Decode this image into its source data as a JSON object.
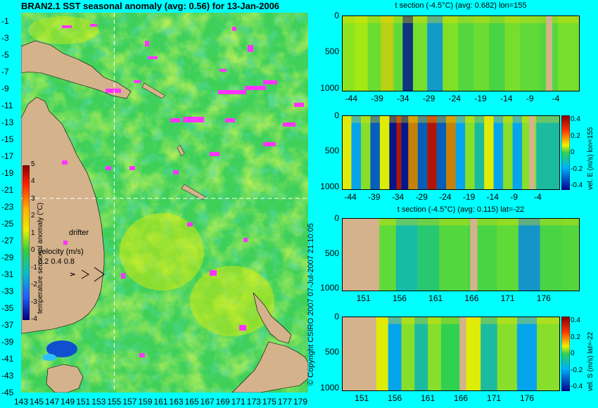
{
  "title": "BRAN2.1 SST seasonal anomaly (avg: 0.56) for 13-Jan-2006",
  "copyright": "© Copyright CSIRO 2007  07-Jul-2007 21:10:05",
  "colors": {
    "background": "#00ffff",
    "land": "#d4b28c",
    "drifter": "#ff33ff",
    "crosshair": "#ffffff"
  },
  "map": {
    "lat_labels": [
      "-1",
      "-3",
      "-5",
      "-7",
      "-9",
      "-11",
      "-13",
      "-15",
      "-17",
      "-19",
      "-21",
      "-23",
      "-25",
      "-27",
      "-29",
      "-31",
      "-33",
      "-35",
      "-37",
      "-39",
      "-41",
      "-43",
      "-45"
    ],
    "lon_labels": [
      "143",
      "145",
      "147",
      "149",
      "151",
      "153",
      "155",
      "157",
      "159",
      "161",
      "163",
      "165",
      "167",
      "169",
      "171",
      "173",
      "175",
      "177",
      "179"
    ],
    "crosshair": {
      "lon": 155,
      "lat": -22
    },
    "colorbar": {
      "label": "temperature seasonal anomaly (°C)",
      "ticks": [
        "5",
        "4",
        "3",
        "2",
        "1",
        "0",
        "-1",
        "-2",
        "-3",
        "-4"
      ],
      "range": [
        -4,
        5
      ]
    },
    "legend": {
      "drifter": "drifter",
      "velocity_title": "velocity (m/s)",
      "velocity_values": "0.2 0.4 0.8"
    }
  },
  "panels": [
    {
      "id": "p1",
      "title": "t section (-4.5°C) (avg: 0.682) lon=155",
      "xticks": [
        "-44",
        "-39",
        "-34",
        "-29",
        "-24",
        "-19",
        "-14",
        "-9",
        "-4"
      ],
      "yticks": [
        "0",
        "500",
        "1000"
      ],
      "colorbar": false
    },
    {
      "id": "p2",
      "title": "",
      "xticks": [
        "-44",
        "-39",
        "-34",
        "-29",
        "-24",
        "-19",
        "-14",
        "-9",
        "-4"
      ],
      "yticks": [
        "0",
        "500",
        "1000"
      ],
      "colorbar": true,
      "cb_ticks": [
        "0.4",
        "0.2",
        "0",
        "-0.2",
        "-0.4"
      ],
      "cb_label": "vel. E (m/s) lon=155"
    },
    {
      "id": "p3",
      "title": "t section (-4.5°C) (avg: 0.115) lat=-22",
      "xticks": [
        "151",
        "156",
        "161",
        "166",
        "171",
        "176"
      ],
      "yticks": [
        "0",
        "500",
        "1000"
      ],
      "colorbar": false
    },
    {
      "id": "p4",
      "title": "",
      "xticks": [
        "151",
        "156",
        "161",
        "166",
        "171",
        "176"
      ],
      "yticks": [
        "0",
        "500",
        "1000"
      ],
      "colorbar": true,
      "cb_ticks": [
        "0.4",
        "0.2",
        "0",
        "-0.2",
        "-0.4"
      ],
      "cb_label": "vel. S (m/s) lat=-22"
    }
  ],
  "chart_data": [
    {
      "type": "heatmap",
      "title": "BRAN2.1 SST seasonal anomaly (avg: 0.56) for 13-Jan-2006",
      "xlabel": "",
      "ylabel": "",
      "xlim": [
        143,
        180
      ],
      "ylim": [
        -45,
        0
      ],
      "colorbar_range": [
        -4,
        5
      ],
      "mean": 0.56
    },
    {
      "type": "heatmap",
      "title": "t section (-4.5°C) (avg: 0.682) lon=155",
      "xlim": [
        -46,
        0
      ],
      "ylim": [
        1050,
        0
      ],
      "mean": 0.682,
      "columns": [
        {
          "x": -45,
          "v": 0.8
        },
        {
          "x": -42,
          "v": 1.0
        },
        {
          "x": -40,
          "v": 0.5
        },
        {
          "x": -37,
          "v": 1.5
        },
        {
          "x": -35,
          "v": 0.4
        },
        {
          "x": -33.5,
          "v": -4.0
        },
        {
          "x": -31,
          "v": 0.6
        },
        {
          "x": -28,
          "v": -1.5
        },
        {
          "x": -25,
          "v": 0.7
        },
        {
          "x": -22,
          "v": 0.3
        },
        {
          "x": -19,
          "v": 0.5
        },
        {
          "x": -16,
          "v": 0.2
        },
        {
          "x": -13,
          "v": 0.6
        },
        {
          "x": -10,
          "v": 0.4
        },
        {
          "x": -5.5,
          "v": 0.3
        },
        {
          "x": -3,
          "v": 0.6
        }
      ]
    },
    {
      "type": "heatmap",
      "title": "",
      "xlim": [
        -46,
        0
      ],
      "ylim": [
        1050,
        0
      ],
      "colorbar_label": "vel. E (m/s) lon=155",
      "colorbar_range": [
        -0.4,
        0.4
      ],
      "columns": [
        {
          "x": -45,
          "v": 0.2
        },
        {
          "x": -43,
          "v": -0.2
        },
        {
          "x": -41,
          "v": 0.1
        },
        {
          "x": -39,
          "v": -0.3
        },
        {
          "x": -37,
          "v": 0.2
        },
        {
          "x": -35,
          "v": -0.4
        },
        {
          "x": -34,
          "v": 0.4
        },
        {
          "x": -33,
          "v": -0.4
        },
        {
          "x": -31,
          "v": 0.3
        },
        {
          "x": -29,
          "v": -0.3
        },
        {
          "x": -27,
          "v": 0.4
        },
        {
          "x": -25,
          "v": -0.3
        },
        {
          "x": -23,
          "v": 0.3
        },
        {
          "x": -21,
          "v": -0.2
        },
        {
          "x": -19,
          "v": 0.1
        },
        {
          "x": -17,
          "v": -0.1
        },
        {
          "x": -15,
          "v": 0.2
        },
        {
          "x": -13,
          "v": -0.2
        },
        {
          "x": -11,
          "v": 0.1
        },
        {
          "x": -9,
          "v": -0.2
        },
        {
          "x": -7,
          "v": 0.1
        },
        {
          "x": -3,
          "v": -0.1
        }
      ]
    },
    {
      "type": "heatmap",
      "title": "t section (-4.5°C) (avg: 0.115) lat=-22",
      "xlim": [
        148,
        181
      ],
      "ylim": [
        1050,
        0
      ],
      "mean": 0.115,
      "columns": [
        {
          "x": 154,
          "v": 0.4
        },
        {
          "x": 157,
          "v": -0.8
        },
        {
          "x": 160,
          "v": -0.3
        },
        {
          "x": 163,
          "v": 0.3
        },
        {
          "x": 168,
          "v": 0.2
        },
        {
          "x": 171,
          "v": 0.4
        },
        {
          "x": 174,
          "v": -1.6
        },
        {
          "x": 177,
          "v": 0.2
        },
        {
          "x": 180,
          "v": 0.3
        }
      ]
    },
    {
      "type": "heatmap",
      "title": "",
      "xlim": [
        148,
        181
      ],
      "ylim": [
        1050,
        0
      ],
      "colorbar_label": "vel. S (m/s) lat=-22",
      "colorbar_range": [
        -0.4,
        0.4
      ],
      "columns": [
        {
          "x": 154,
          "v": 0.2
        },
        {
          "x": 156,
          "v": -0.2
        },
        {
          "x": 158,
          "v": 0.1
        },
        {
          "x": 160,
          "v": -0.1
        },
        {
          "x": 162,
          "v": 0.1
        },
        {
          "x": 164,
          "v": 0.0
        },
        {
          "x": 168,
          "v": 0.2
        },
        {
          "x": 170,
          "v": -0.1
        },
        {
          "x": 173,
          "v": 0.1
        },
        {
          "x": 176,
          "v": -0.2
        },
        {
          "x": 179,
          "v": 0.1
        }
      ]
    }
  ]
}
